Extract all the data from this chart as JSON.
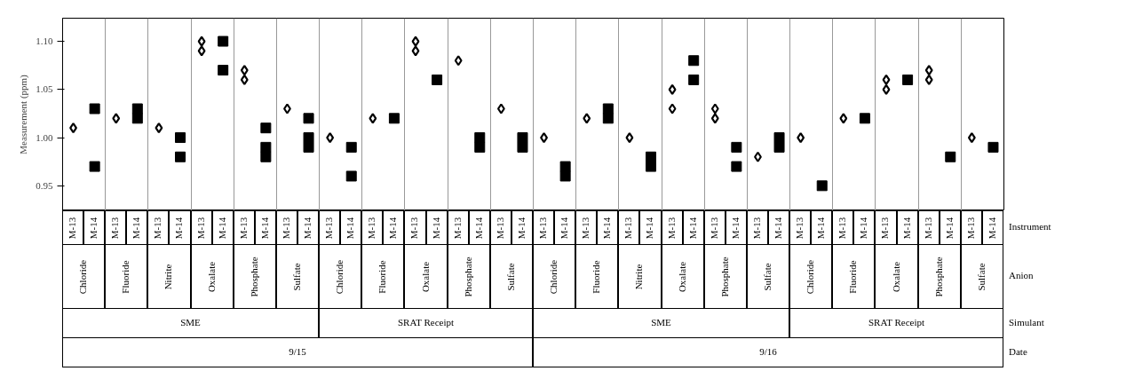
{
  "chart_data": {
    "type": "scatter",
    "ylabel": "Measurement (ppm)",
    "categories": [
      "M-13",
      "M-14",
      "M-13",
      "M-14",
      "M-13",
      "M-14",
      "M-13",
      "M-14",
      "M-13",
      "M-14",
      "M-13",
      "M-14",
      "M-13",
      "M-14",
      "M-13",
      "M-14",
      "M-13",
      "M-14",
      "M-13",
      "M-14",
      "M-13",
      "M-14",
      "M-13",
      "M-14",
      "M-13",
      "M-14",
      "M-13",
      "M-14",
      "M-13",
      "M-14",
      "M-13",
      "M-14",
      "M-13",
      "M-14",
      "M-13",
      "M-14",
      "M-13",
      "M-14",
      "M-13",
      "M-14",
      "M-13",
      "M-14",
      "M-13",
      "M-14"
    ],
    "series": [
      {
        "color": "#000000",
        "marker": "diamond",
        "values": [
          1.01,
          null,
          1.02,
          null,
          1.01,
          null,
          1.1,
          null,
          1.07,
          null,
          1.03,
          null,
          1.0,
          null,
          1.02,
          null,
          1.1,
          null,
          1.08,
          null,
          1.03,
          null,
          1.0,
          null,
          1.02,
          null,
          1.0,
          null,
          1.05,
          null,
          1.03,
          null,
          0.98,
          null,
          1.0,
          null,
          1.02,
          null,
          1.06,
          null,
          1.07,
          null,
          1.0,
          null
        ]
      },
      {
        "color": "#000000",
        "marker": "diamond",
        "values": [
          null,
          null,
          null,
          null,
          null,
          null,
          1.09,
          null,
          1.06,
          null,
          null,
          null,
          null,
          null,
          null,
          null,
          1.09,
          null,
          null,
          null,
          null,
          null,
          null,
          null,
          null,
          null,
          null,
          null,
          1.03,
          null,
          1.02,
          null,
          null,
          null,
          null,
          null,
          null,
          null,
          1.05,
          null,
          1.06,
          null,
          null,
          null
        ]
      },
      {
        "color": "#000000",
        "marker": "square",
        "values": [
          null,
          1.03,
          null,
          1.03,
          null,
          1.0,
          null,
          1.1,
          null,
          1.01,
          null,
          1.02,
          null,
          0.99,
          null,
          1.02,
          null,
          1.06,
          null,
          1.0,
          null,
          1.0,
          null,
          0.97,
          null,
          1.03,
          null,
          0.98,
          null,
          1.08,
          null,
          0.99,
          null,
          1.0,
          null,
          0.95,
          null,
          1.02,
          null,
          1.06,
          null,
          0.98,
          null,
          0.99
        ]
      },
      {
        "color": "#000000",
        "marker": "square",
        "values": [
          null,
          0.97,
          null,
          1.02,
          null,
          0.98,
          null,
          1.07,
          null,
          0.99,
          null,
          1.0,
          null,
          0.96,
          null,
          null,
          null,
          null,
          null,
          0.99,
          null,
          0.99,
          null,
          0.96,
          null,
          1.02,
          null,
          0.97,
          null,
          1.06,
          null,
          0.97,
          null,
          0.99,
          null,
          null,
          null,
          null,
          null,
          null,
          null,
          null,
          null,
          null
        ]
      },
      {
        "color": "#000000",
        "marker": "square",
        "values": [
          null,
          null,
          null,
          null,
          null,
          null,
          null,
          null,
          null,
          0.98,
          null,
          0.99,
          null,
          null,
          null,
          null,
          null,
          null,
          null,
          null,
          null,
          null,
          null,
          null,
          null,
          null,
          null,
          null,
          null,
          null,
          null,
          null,
          null,
          null,
          null,
          null,
          null,
          null,
          null,
          null,
          null,
          null,
          null,
          null
        ]
      }
    ],
    "ylim": [
      0.924,
      1.124
    ],
    "yticks": [
      {
        "value": 0.95,
        "label": "0.95"
      },
      {
        "value": 1.0,
        "label": "1.00"
      },
      {
        "value": 1.05,
        "label": "1.05"
      },
      {
        "value": 1.1,
        "label": "1.10"
      }
    ],
    "grid": "x",
    "annotations": [
      "Chloride",
      "Fluoride",
      "Nitrite",
      "Oxalate",
      "Phosphate",
      "Sulfate",
      "Chloride",
      "Fluoride",
      "Oxalate",
      "Phosphate",
      "Sulfate",
      "Chloride",
      "Fluoride",
      "Nitrite",
      "Oxalate",
      "Phosphate",
      "Sulfate",
      "Chloride",
      "Fluoride",
      "Oxalate",
      "Phosphate",
      "Sulfate",
      "SME",
      "SRAT Receipt",
      "SME",
      "SRAT Receipt",
      "9/15",
      "9/16",
      "Instrument",
      "Anion",
      "Simulant",
      "Date"
    ]
  }
}
